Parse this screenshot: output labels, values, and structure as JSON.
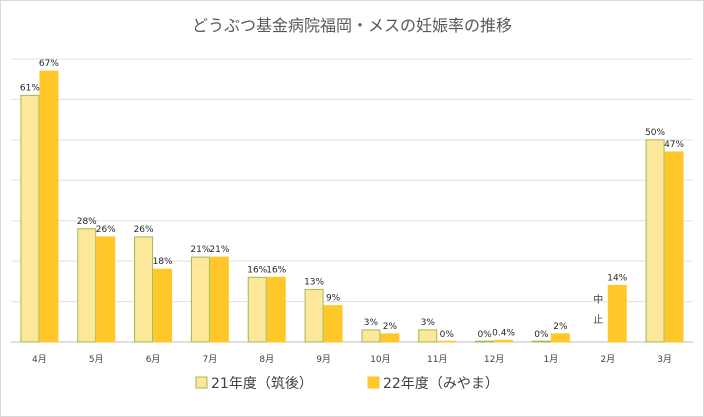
{
  "chart_data": {
    "type": "bar",
    "title": "どうぶつ基金病院福岡・メスの妊娠率の推移",
    "categories": [
      "4月",
      "5月",
      "6月",
      "7月",
      "8月",
      "9月",
      "10月",
      "11月",
      "12月",
      "1月",
      "2月",
      "3月"
    ],
    "series": [
      {
        "name": "21年度（筑後）",
        "color": "#fde79a",
        "stroke": "#9bbb59",
        "values": [
          61,
          28,
          26,
          21,
          16,
          13,
          3,
          3,
          0,
          0,
          null,
          50
        ],
        "labels": [
          "61%",
          "28%",
          "26%",
          "21%",
          "16%",
          "13%",
          "3%",
          "3%",
          "0%",
          "0%",
          "",
          "50%"
        ]
      },
      {
        "name": "22年度（みやま）",
        "color": "#ffc729",
        "stroke": "#ffc729",
        "values": [
          67,
          26,
          18,
          21,
          16,
          9,
          2,
          0,
          0.4,
          2,
          14,
          47
        ],
        "labels": [
          "67%",
          "26%",
          "18%",
          "21%",
          "16%",
          "9%",
          "2%",
          "0%",
          "0.4%",
          "2%",
          "14%",
          "47%"
        ]
      }
    ],
    "annotation": {
      "text": "中止",
      "category": "2月"
    },
    "ylim": [
      0,
      70
    ],
    "grid": true,
    "legend": "bottom"
  }
}
